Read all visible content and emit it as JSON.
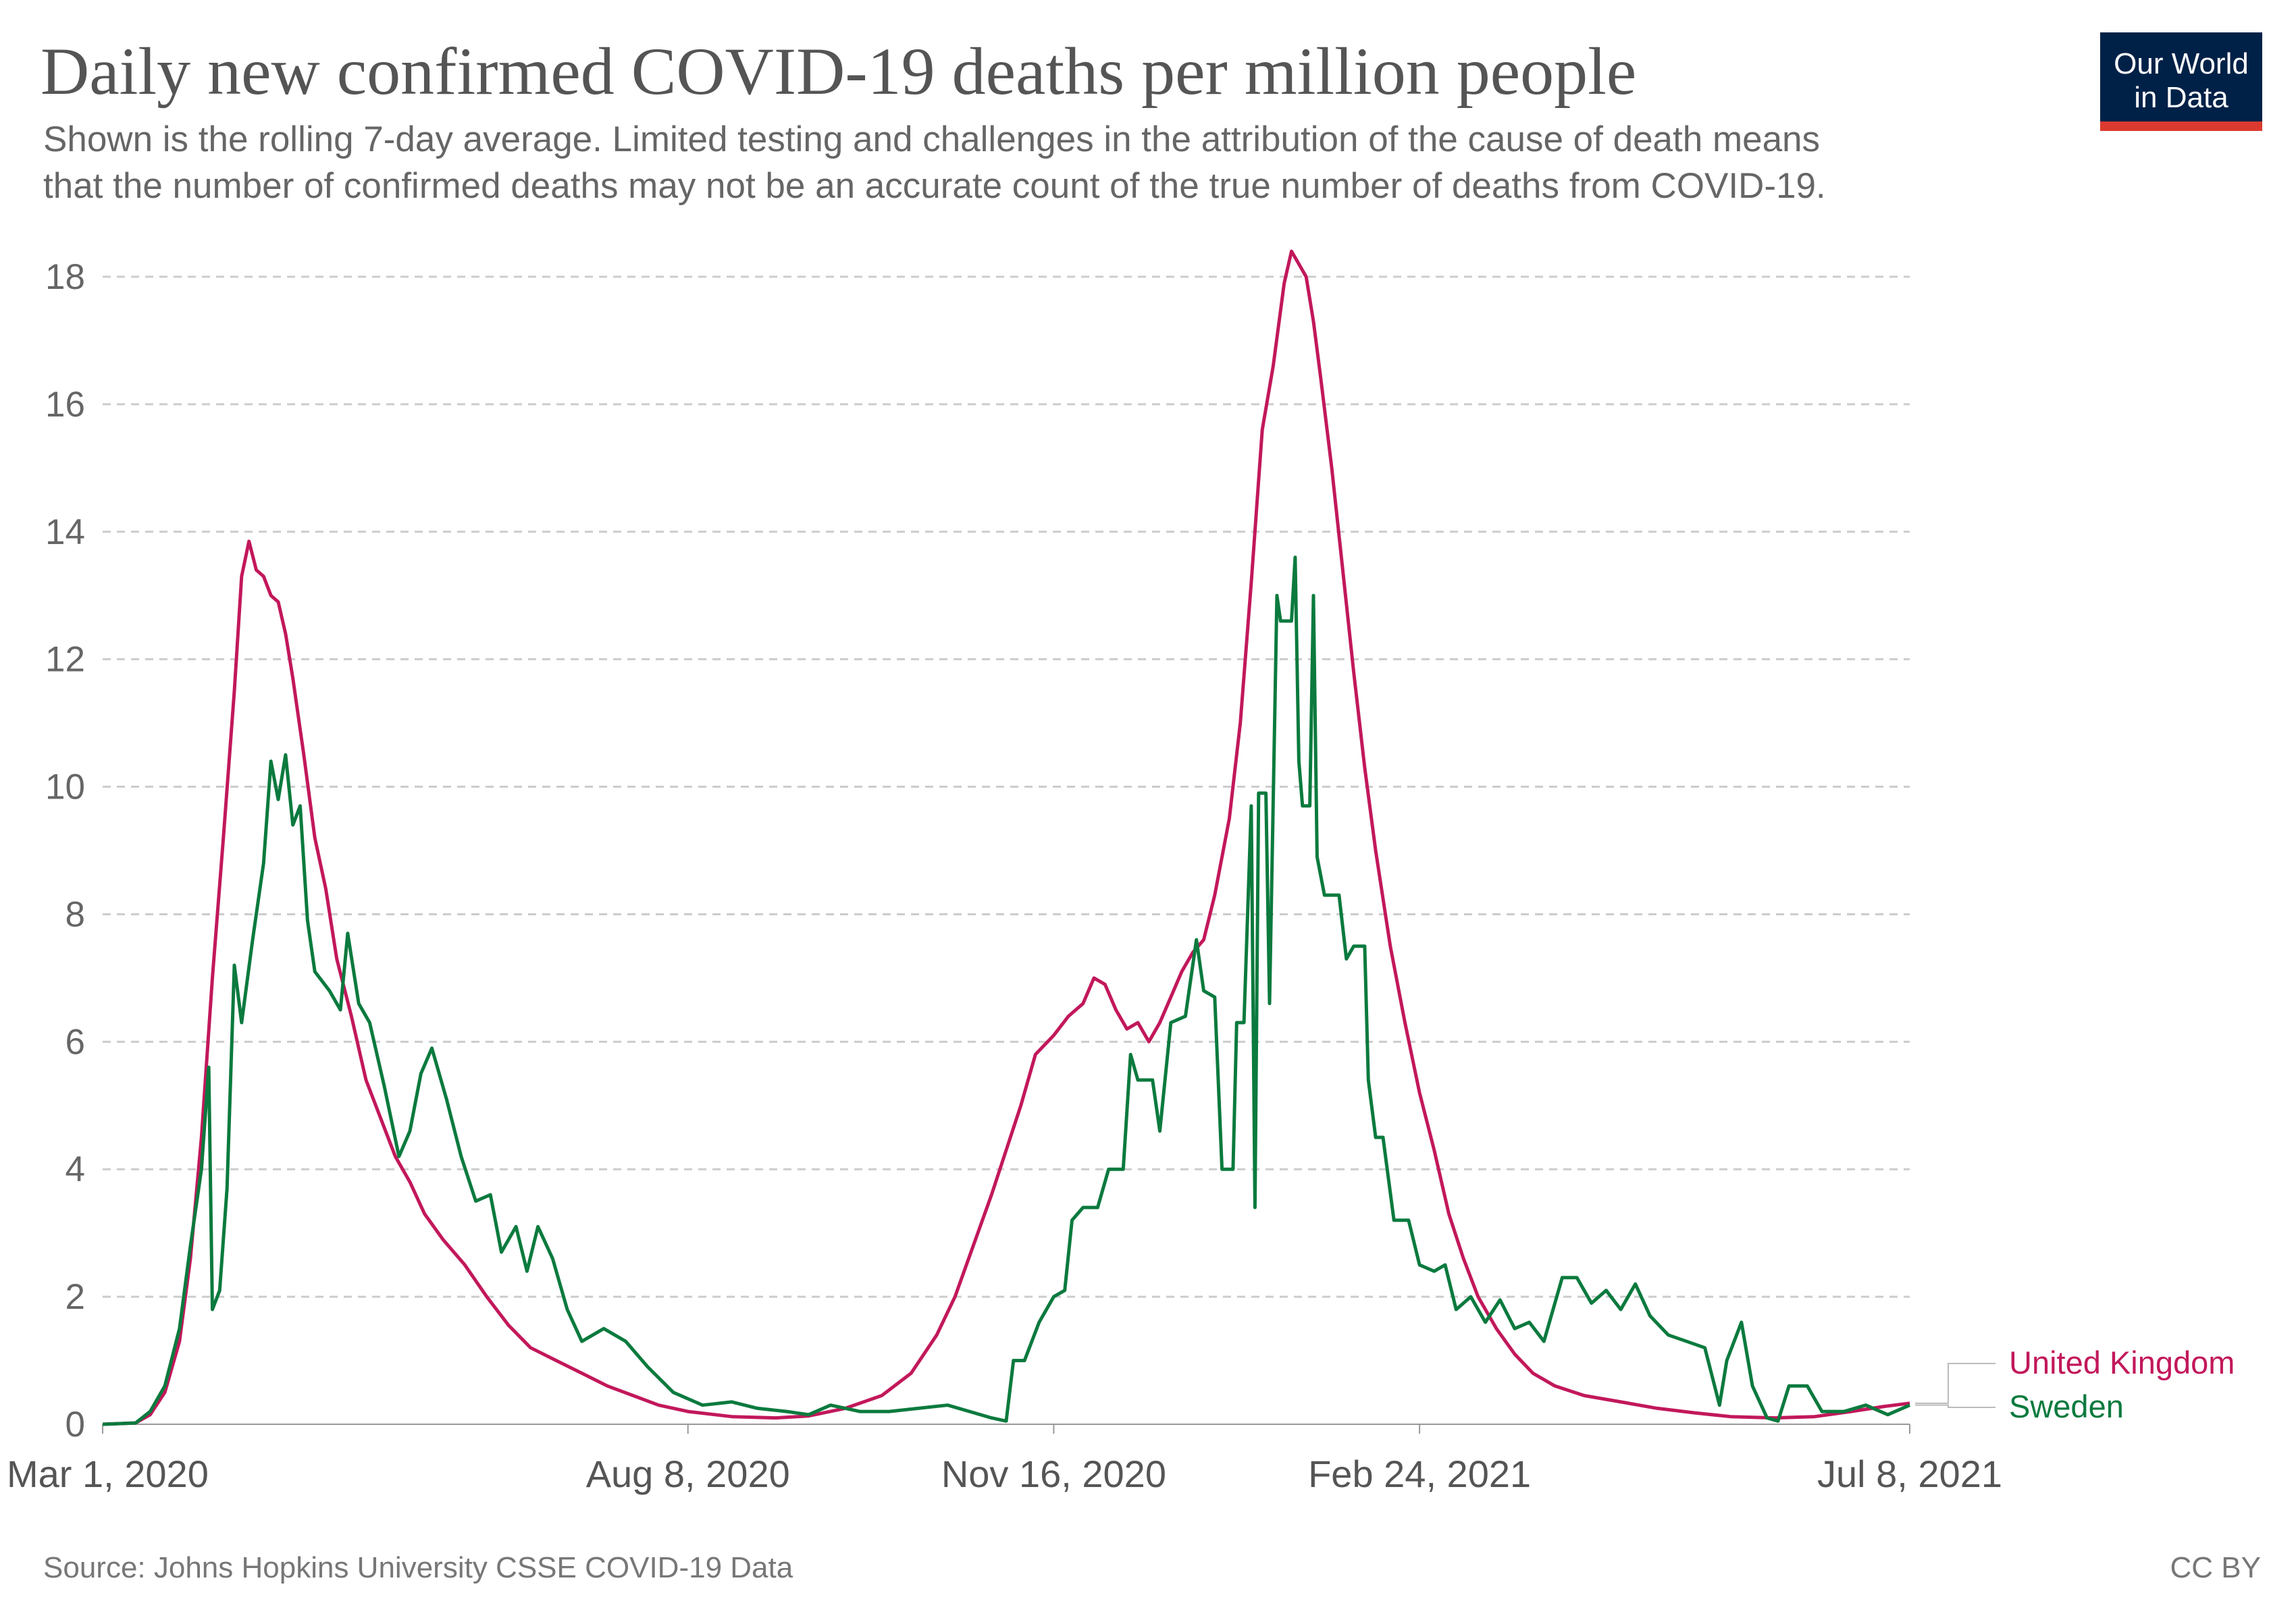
{
  "header": {
    "title": "Daily new confirmed COVID-19 deaths per million people",
    "subtitle_line1": "Shown is the rolling 7-day average. Limited testing and challenges in the attribution of the cause of death means",
    "subtitle_line2": "that the number of confirmed deaths may not be an accurate count of the true number of deaths from COVID-19."
  },
  "logo": {
    "line1": "Our World",
    "line2": "in Data",
    "bg_color": "#002147",
    "accent_color": "#dc3a2f"
  },
  "footer": {
    "source": "Source: Johns Hopkins University CSSE COVID-19 Data",
    "license": "CC BY"
  },
  "chart_data": {
    "type": "line",
    "title": "Daily new confirmed COVID-19 deaths per million people",
    "xlabel": "",
    "ylabel": "",
    "x_start": "2020-03-01",
    "x_end": "2021-07-08",
    "xlim": [
      "2020-03-01",
      "2021-07-08"
    ],
    "ylim": [
      0,
      18
    ],
    "grid": true,
    "y_ticks": [
      0,
      2,
      4,
      6,
      8,
      10,
      12,
      14,
      16,
      18
    ],
    "x_ticks": [
      {
        "date": "2020-03-01",
        "label": "Mar 1, 2020"
      },
      {
        "date": "2020-08-08",
        "label": "Aug 8, 2020"
      },
      {
        "date": "2020-11-16",
        "label": "Nov 16, 2020"
      },
      {
        "date": "2021-02-24",
        "label": "Feb 24, 2021"
      },
      {
        "date": "2021-07-08",
        "label": "Jul 8, 2021"
      }
    ],
    "legend_placement": "right",
    "series": [
      {
        "name": "United Kingdom",
        "color": "#c2185b",
        "points": [
          [
            "2020-03-01",
            0
          ],
          [
            "2020-03-10",
            0.02
          ],
          [
            "2020-03-14",
            0.15
          ],
          [
            "2020-03-18",
            0.5
          ],
          [
            "2020-03-22",
            1.3
          ],
          [
            "2020-03-25",
            2.6
          ],
          [
            "2020-03-28",
            4.5
          ],
          [
            "2020-03-31",
            7.0
          ],
          [
            "2020-04-03",
            9.2
          ],
          [
            "2020-04-06",
            11.5
          ],
          [
            "2020-04-08",
            13.3
          ],
          [
            "2020-04-10",
            13.85
          ],
          [
            "2020-04-12",
            13.4
          ],
          [
            "2020-04-14",
            13.3
          ],
          [
            "2020-04-16",
            13.0
          ],
          [
            "2020-04-18",
            12.9
          ],
          [
            "2020-04-20",
            12.4
          ],
          [
            "2020-04-22",
            11.7
          ],
          [
            "2020-04-25",
            10.5
          ],
          [
            "2020-04-28",
            9.2
          ],
          [
            "2020-05-01",
            8.4
          ],
          [
            "2020-05-04",
            7.3
          ],
          [
            "2020-05-08",
            6.4
          ],
          [
            "2020-05-12",
            5.4
          ],
          [
            "2020-05-16",
            4.8
          ],
          [
            "2020-05-20",
            4.2
          ],
          [
            "2020-05-24",
            3.8
          ],
          [
            "2020-05-28",
            3.3
          ],
          [
            "2020-06-02",
            2.9
          ],
          [
            "2020-06-08",
            2.5
          ],
          [
            "2020-06-14",
            2.0
          ],
          [
            "2020-06-20",
            1.55
          ],
          [
            "2020-06-26",
            1.2
          ],
          [
            "2020-07-03",
            1.0
          ],
          [
            "2020-07-10",
            0.8
          ],
          [
            "2020-07-17",
            0.6
          ],
          [
            "2020-07-24",
            0.45
          ],
          [
            "2020-07-31",
            0.3
          ],
          [
            "2020-08-08",
            0.2
          ],
          [
            "2020-08-20",
            0.12
          ],
          [
            "2020-09-01",
            0.1
          ],
          [
            "2020-09-10",
            0.13
          ],
          [
            "2020-09-20",
            0.25
          ],
          [
            "2020-09-30",
            0.45
          ],
          [
            "2020-10-08",
            0.8
          ],
          [
            "2020-10-15",
            1.4
          ],
          [
            "2020-10-20",
            2.0
          ],
          [
            "2020-10-25",
            2.8
          ],
          [
            "2020-10-30",
            3.6
          ],
          [
            "2020-11-03",
            4.3
          ],
          [
            "2020-11-07",
            5.0
          ],
          [
            "2020-11-11",
            5.8
          ],
          [
            "2020-11-16",
            6.1
          ],
          [
            "2020-11-20",
            6.4
          ],
          [
            "2020-11-24",
            6.6
          ],
          [
            "2020-11-27",
            7.0
          ],
          [
            "2020-11-30",
            6.9
          ],
          [
            "2020-12-03",
            6.5
          ],
          [
            "2020-12-06",
            6.2
          ],
          [
            "2020-12-09",
            6.3
          ],
          [
            "2020-12-12",
            6.0
          ],
          [
            "2020-12-15",
            6.3
          ],
          [
            "2020-12-18",
            6.7
          ],
          [
            "2020-12-21",
            7.1
          ],
          [
            "2020-12-24",
            7.4
          ],
          [
            "2020-12-27",
            7.6
          ],
          [
            "2020-12-30",
            8.3
          ],
          [
            "2021-01-03",
            9.5
          ],
          [
            "2021-01-06",
            11.0
          ],
          [
            "2021-01-09",
            13.2
          ],
          [
            "2021-01-12",
            15.6
          ],
          [
            "2021-01-15",
            16.6
          ],
          [
            "2021-01-18",
            17.9
          ],
          [
            "2021-01-20",
            18.4
          ],
          [
            "2021-01-22",
            18.2
          ],
          [
            "2021-01-24",
            18.0
          ],
          [
            "2021-01-26",
            17.3
          ],
          [
            "2021-01-28",
            16.4
          ],
          [
            "2021-01-31",
            15.0
          ],
          [
            "2021-02-03",
            13.4
          ],
          [
            "2021-02-06",
            11.8
          ],
          [
            "2021-02-09",
            10.3
          ],
          [
            "2021-02-12",
            9.0
          ],
          [
            "2021-02-16",
            7.5
          ],
          [
            "2021-02-20",
            6.3
          ],
          [
            "2021-02-24",
            5.2
          ],
          [
            "2021-02-28",
            4.3
          ],
          [
            "2021-03-04",
            3.3
          ],
          [
            "2021-03-08",
            2.6
          ],
          [
            "2021-03-12",
            2.0
          ],
          [
            "2021-03-17",
            1.5
          ],
          [
            "2021-03-22",
            1.1
          ],
          [
            "2021-03-27",
            0.8
          ],
          [
            "2021-04-02",
            0.6
          ],
          [
            "2021-04-10",
            0.45
          ],
          [
            "2021-04-20",
            0.35
          ],
          [
            "2021-04-30",
            0.25
          ],
          [
            "2021-05-10",
            0.18
          ],
          [
            "2021-05-20",
            0.12
          ],
          [
            "2021-06-01",
            0.1
          ],
          [
            "2021-06-12",
            0.12
          ],
          [
            "2021-06-22",
            0.2
          ],
          [
            "2021-07-01",
            0.28
          ],
          [
            "2021-07-08",
            0.33
          ]
        ]
      },
      {
        "name": "Sweden",
        "color": "#0b7a3e",
        "points": [
          [
            "2020-03-01",
            0
          ],
          [
            "2020-03-10",
            0.02
          ],
          [
            "2020-03-14",
            0.2
          ],
          [
            "2020-03-18",
            0.6
          ],
          [
            "2020-03-22",
            1.5
          ],
          [
            "2020-03-25",
            2.8
          ],
          [
            "2020-03-28",
            4.0
          ],
          [
            "2020-03-30",
            5.6
          ],
          [
            "2020-03-31",
            1.8
          ],
          [
            "2020-04-02",
            2.1
          ],
          [
            "2020-04-04",
            3.7
          ],
          [
            "2020-04-06",
            7.2
          ],
          [
            "2020-04-08",
            6.3
          ],
          [
            "2020-04-11",
            7.6
          ],
          [
            "2020-04-14",
            8.8
          ],
          [
            "2020-04-16",
            10.4
          ],
          [
            "2020-04-18",
            9.8
          ],
          [
            "2020-04-20",
            10.5
          ],
          [
            "2020-04-22",
            9.4
          ],
          [
            "2020-04-24",
            9.7
          ],
          [
            "2020-04-26",
            7.9
          ],
          [
            "2020-04-28",
            7.1
          ],
          [
            "2020-05-02",
            6.8
          ],
          [
            "2020-05-05",
            6.5
          ],
          [
            "2020-05-07",
            7.7
          ],
          [
            "2020-05-10",
            6.6
          ],
          [
            "2020-05-13",
            6.3
          ],
          [
            "2020-05-17",
            5.3
          ],
          [
            "2020-05-21",
            4.2
          ],
          [
            "2020-05-24",
            4.6
          ],
          [
            "2020-05-27",
            5.5
          ],
          [
            "2020-05-30",
            5.9
          ],
          [
            "2020-06-03",
            5.1
          ],
          [
            "2020-06-07",
            4.2
          ],
          [
            "2020-06-11",
            3.5
          ],
          [
            "2020-06-15",
            3.6
          ],
          [
            "2020-06-18",
            2.7
          ],
          [
            "2020-06-22",
            3.1
          ],
          [
            "2020-06-25",
            2.4
          ],
          [
            "2020-06-28",
            3.1
          ],
          [
            "2020-07-02",
            2.6
          ],
          [
            "2020-07-06",
            1.8
          ],
          [
            "2020-07-10",
            1.3
          ],
          [
            "2020-07-16",
            1.5
          ],
          [
            "2020-07-22",
            1.3
          ],
          [
            "2020-07-28",
            0.9
          ],
          [
            "2020-08-04",
            0.5
          ],
          [
            "2020-08-12",
            0.3
          ],
          [
            "2020-08-20",
            0.35
          ],
          [
            "2020-08-27",
            0.25
          ],
          [
            "2020-09-04",
            0.2
          ],
          [
            "2020-09-10",
            0.15
          ],
          [
            "2020-09-16",
            0.3
          ],
          [
            "2020-09-24",
            0.2
          ],
          [
            "2020-10-02",
            0.2
          ],
          [
            "2020-10-10",
            0.25
          ],
          [
            "2020-10-18",
            0.3
          ],
          [
            "2020-10-24",
            0.2
          ],
          [
            "2020-10-30",
            0.1
          ],
          [
            "2020-11-03",
            0.05
          ],
          [
            "2020-11-05",
            1.0
          ],
          [
            "2020-11-08",
            1.0
          ],
          [
            "2020-11-12",
            1.6
          ],
          [
            "2020-11-16",
            2.0
          ],
          [
            "2020-11-19",
            2.1
          ],
          [
            "2020-11-21",
            3.2
          ],
          [
            "2020-11-24",
            3.4
          ],
          [
            "2020-11-28",
            3.4
          ],
          [
            "2020-12-01",
            4.0
          ],
          [
            "2020-12-05",
            4.0
          ],
          [
            "2020-12-07",
            5.8
          ],
          [
            "2020-12-09",
            5.4
          ],
          [
            "2020-12-13",
            5.4
          ],
          [
            "2020-12-15",
            4.6
          ],
          [
            "2020-12-18",
            6.3
          ],
          [
            "2020-12-22",
            6.4
          ],
          [
            "2020-12-25",
            7.6
          ],
          [
            "2020-12-27",
            6.8
          ],
          [
            "2020-12-30",
            6.7
          ],
          [
            "2021-01-01",
            4.0
          ],
          [
            "2021-01-04",
            4.0
          ],
          [
            "2021-01-05",
            6.3
          ],
          [
            "2021-01-07",
            6.3
          ],
          [
            "2021-01-09",
            9.7
          ],
          [
            "2021-01-10",
            3.4
          ],
          [
            "2021-01-11",
            9.9
          ],
          [
            "2021-01-13",
            9.9
          ],
          [
            "2021-01-14",
            6.6
          ],
          [
            "2021-01-16",
            13.0
          ],
          [
            "2021-01-17",
            12.6
          ],
          [
            "2021-01-20",
            12.6
          ],
          [
            "2021-01-21",
            13.6
          ],
          [
            "2021-01-22",
            10.4
          ],
          [
            "2021-01-23",
            9.7
          ],
          [
            "2021-01-25",
            9.7
          ],
          [
            "2021-01-26",
            13.0
          ],
          [
            "2021-01-27",
            8.9
          ],
          [
            "2021-01-29",
            8.3
          ],
          [
            "2021-02-02",
            8.3
          ],
          [
            "2021-02-04",
            7.3
          ],
          [
            "2021-02-06",
            7.5
          ],
          [
            "2021-02-09",
            7.5
          ],
          [
            "2021-02-10",
            5.4
          ],
          [
            "2021-02-12",
            4.5
          ],
          [
            "2021-02-14",
            4.5
          ],
          [
            "2021-02-17",
            3.2
          ],
          [
            "2021-02-21",
            3.2
          ],
          [
            "2021-02-24",
            2.5
          ],
          [
            "2021-02-28",
            2.4
          ],
          [
            "2021-03-03",
            2.5
          ],
          [
            "2021-03-06",
            1.8
          ],
          [
            "2021-03-10",
            2.0
          ],
          [
            "2021-03-14",
            1.6
          ],
          [
            "2021-03-18",
            1.95
          ],
          [
            "2021-03-22",
            1.5
          ],
          [
            "2021-03-26",
            1.6
          ],
          [
            "2021-03-30",
            1.3
          ],
          [
            "2021-04-04",
            2.3
          ],
          [
            "2021-04-08",
            2.3
          ],
          [
            "2021-04-12",
            1.9
          ],
          [
            "2021-04-16",
            2.1
          ],
          [
            "2021-04-20",
            1.8
          ],
          [
            "2021-04-24",
            2.2
          ],
          [
            "2021-04-28",
            1.7
          ],
          [
            "2021-05-03",
            1.4
          ],
          [
            "2021-05-08",
            1.3
          ],
          [
            "2021-05-13",
            1.2
          ],
          [
            "2021-05-17",
            0.3
          ],
          [
            "2021-05-19",
            1.0
          ],
          [
            "2021-05-23",
            1.6
          ],
          [
            "2021-05-26",
            0.6
          ],
          [
            "2021-05-30",
            0.1
          ],
          [
            "2021-06-02",
            0.05
          ],
          [
            "2021-06-05",
            0.6
          ],
          [
            "2021-06-10",
            0.6
          ],
          [
            "2021-06-14",
            0.2
          ],
          [
            "2021-06-20",
            0.2
          ],
          [
            "2021-06-26",
            0.3
          ],
          [
            "2021-07-02",
            0.15
          ],
          [
            "2021-07-08",
            0.3
          ]
        ]
      }
    ]
  }
}
